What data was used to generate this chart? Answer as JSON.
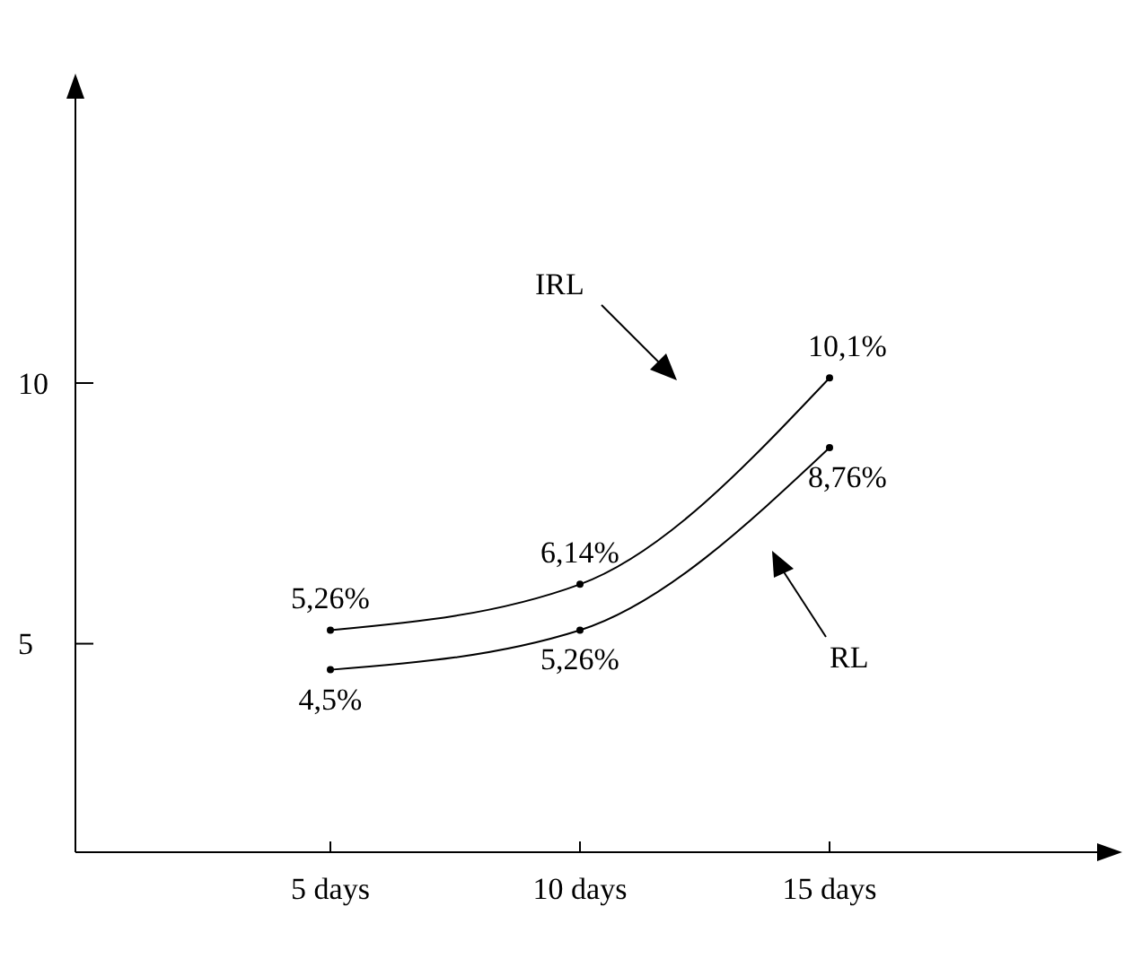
{
  "chart_data": {
    "type": "line",
    "categories": [
      "5  days",
      "10 days",
      "15 days"
    ],
    "series": [
      {
        "name": "IRL",
        "color": "#000000",
        "values": [
          5.26,
          6.14,
          10.1
        ],
        "value_labels": [
          "5,26%",
          "6,14%",
          "10,1%"
        ]
      },
      {
        "name": "RL",
        "color": "#000000",
        "values": [
          4.5,
          5.26,
          8.76
        ],
        "value_labels": [
          "4,5%",
          "5,26%",
          "8,76%"
        ]
      }
    ],
    "ylim": [
      1,
      15.8
    ],
    "yticks": [
      5,
      10
    ],
    "grid": false,
    "marker": "circle",
    "line_style": "solid"
  }
}
